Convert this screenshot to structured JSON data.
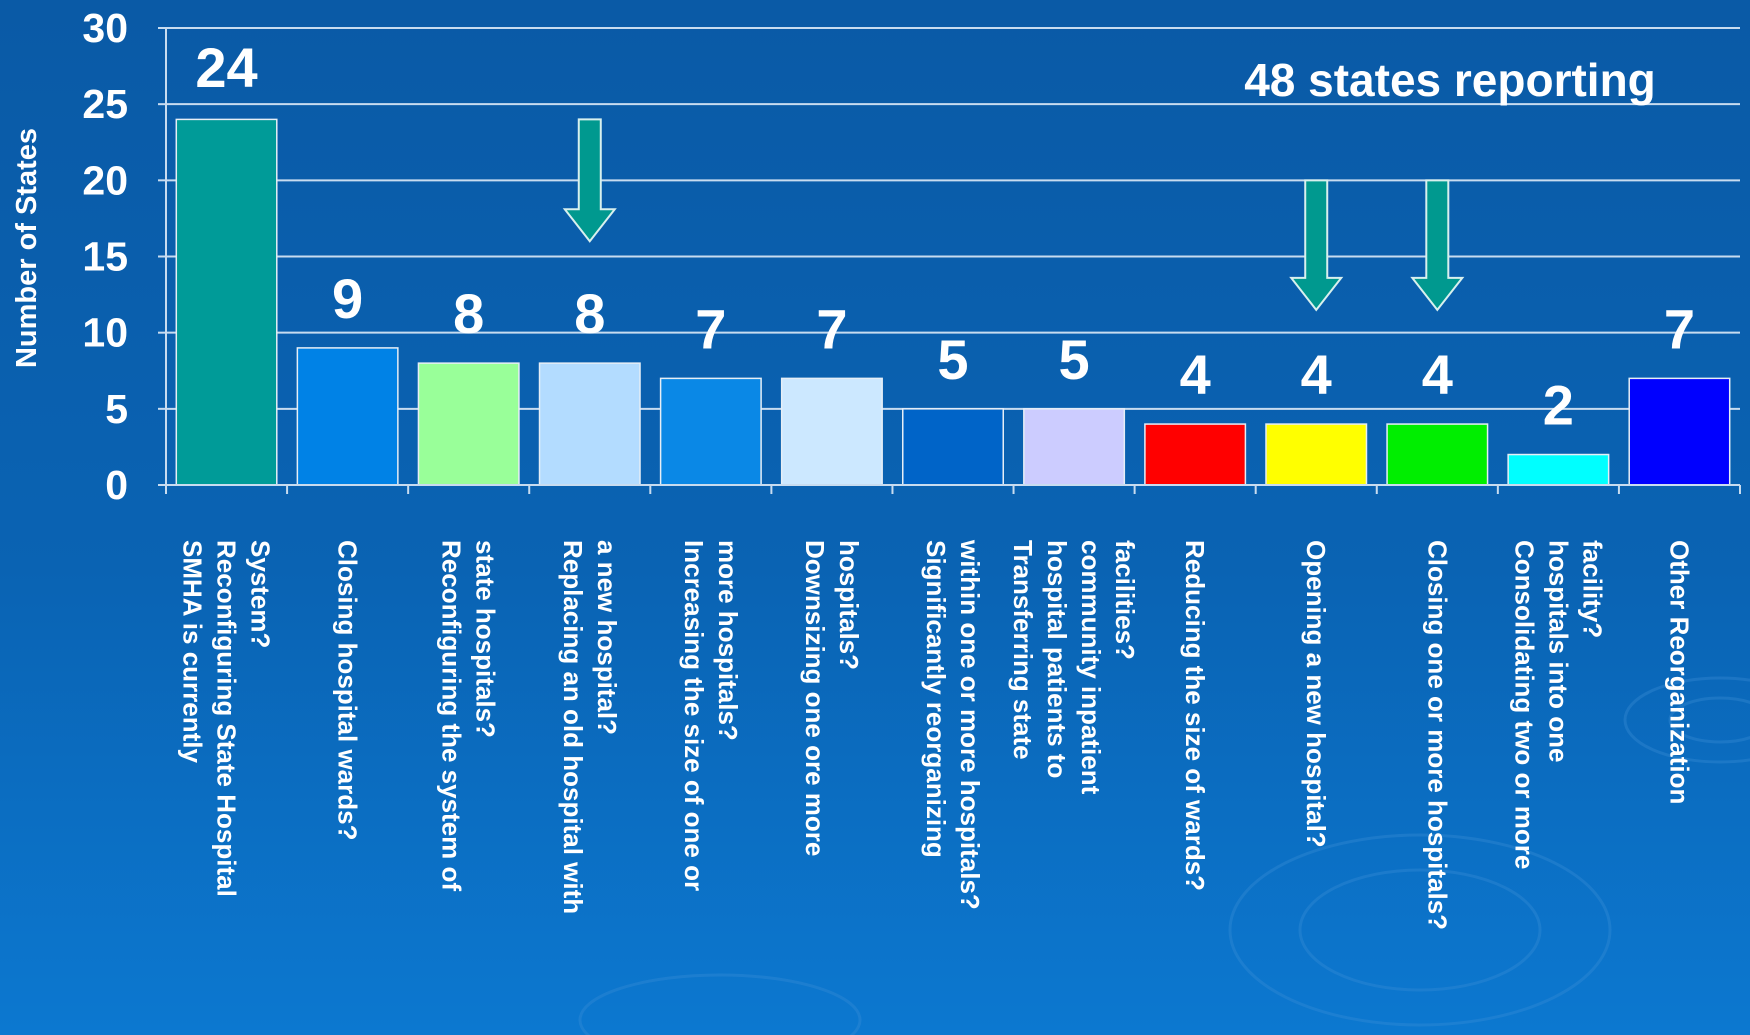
{
  "chart_data": {
    "type": "bar",
    "ylabel": "Number of States",
    "ylim": [
      0,
      30
    ],
    "yticks": [
      0,
      5,
      10,
      15,
      20,
      25,
      30
    ],
    "grid": true,
    "annotation": "48 states reporting",
    "categories": [
      "SMHA is currently Reconfiguring State Hospital System?",
      "Closing hospital wards?",
      "Reconfiguring the system of state hospitals?",
      "Replacing an old hospital with a new hospital?",
      "Increasing the size of one or more hospitals?",
      "Downsizing one ore more hospitals?",
      "Significantly reorganizing within one or more hospitals?",
      "Transferring state hospital patients to community inpatient facilities?",
      "Reducing the size of wards?",
      "Opening a new hospital?",
      "Closing one or more hospitals?",
      "Consolidating two or more hospitals into one facility?",
      "Other Reorganization"
    ],
    "values": [
      24,
      9,
      8,
      8,
      7,
      7,
      5,
      5,
      4,
      4,
      4,
      2,
      7
    ],
    "value_labels": [
      "24",
      "9",
      "8",
      "8",
      "7",
      "7",
      "5",
      "5",
      "4",
      "4",
      "4",
      "2",
      "7"
    ],
    "colors": [
      "#009b98",
      "#0082e6",
      "#99ff99",
      "#b3dcff",
      "#0a88e6",
      "#cce8ff",
      "#0064c8",
      "#ccccff",
      "#ff0000",
      "#ffff00",
      "#00ee00",
      "#00ffff",
      "#0000ff"
    ],
    "highlight_arrows_categories": [
      "Replacing an old hospital with a new hospital?",
      "Opening a new hospital?",
      "Closing one or more hospitals?"
    ],
    "arrow_color": "#00998f"
  }
}
